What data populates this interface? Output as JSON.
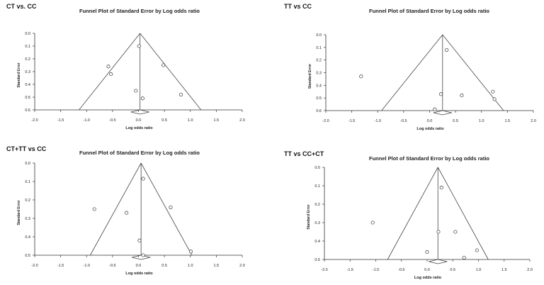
{
  "chart_data": [
    {
      "type": "scatter",
      "panel_label": "CT vs. CC",
      "title": "Funnel Plot of Standard Error by Log odds ratio",
      "xlabel": "Log odds ratio",
      "ylabel": "Standard Error",
      "xlim": [
        -2.0,
        2.0
      ],
      "ylim": [
        0.0,
        0.6
      ],
      "x_ticks": [
        "-2.0",
        "-1.5",
        "-1.0",
        "-0.5",
        "0.0",
        "0.5",
        "1.0",
        "1.5",
        "2.0"
      ],
      "y_ticks": [
        "0.0",
        "0.1",
        "0.2",
        "0.3",
        "0.4",
        "0.5",
        "0.6"
      ],
      "pooled_estimate": 0.03,
      "funnel_base_se": 0.6,
      "points": [
        {
          "x": 0.01,
          "y": 0.1
        },
        {
          "x": -0.58,
          "y": 0.26
        },
        {
          "x": -0.53,
          "y": 0.32
        },
        {
          "x": 0.48,
          "y": 0.25
        },
        {
          "x": -0.05,
          "y": 0.45
        },
        {
          "x": 0.08,
          "y": 0.51
        },
        {
          "x": 0.82,
          "y": 0.48
        }
      ]
    },
    {
      "type": "scatter",
      "panel_label": "TT vs CC",
      "title": "Funnel Plot of Standard Error by Log odds ratio",
      "xlabel": "Log odds ratio",
      "ylabel": "Standard Error",
      "xlim": [
        -2.0,
        2.0
      ],
      "ylim": [
        0.0,
        0.6
      ],
      "x_ticks": [
        "-2.0",
        "-1.5",
        "-1.0",
        "-0.5",
        "0.0",
        "0.5",
        "1.0",
        "1.5",
        "2.0"
      ],
      "y_ticks": [
        "0.0",
        "0.1",
        "0.2",
        "0.3",
        "0.4",
        "0.5",
        "0.6"
      ],
      "pooled_estimate": 0.25,
      "funnel_base_se": 0.6,
      "points": [
        {
          "x": 0.33,
          "y": 0.12
        },
        {
          "x": -1.32,
          "y": 0.33
        },
        {
          "x": 0.22,
          "y": 0.47
        },
        {
          "x": 0.62,
          "y": 0.48
        },
        {
          "x": 1.22,
          "y": 0.45
        },
        {
          "x": 1.25,
          "y": 0.51
        },
        {
          "x": 0.1,
          "y": 0.59
        }
      ]
    },
    {
      "type": "scatter",
      "panel_label": "CT+TT vs CC",
      "title": "Funnel Plot of Standard Error by Log odds ratio",
      "xlabel": "Log odds ratio",
      "ylabel": "Standard Error",
      "xlim": [
        -2.0,
        2.0
      ],
      "ylim": [
        0.0,
        0.5
      ],
      "x_ticks": [
        "-2.0",
        "-1.5",
        "-1.0",
        "-0.5",
        "0.0",
        "0.5",
        "1.0",
        "1.5",
        "2.0"
      ],
      "y_ticks": [
        "0.0",
        "0.1",
        "0.2",
        "0.3",
        "0.4",
        "0.5"
      ],
      "pooled_estimate": 0.05,
      "funnel_base_se": 0.5,
      "points": [
        {
          "x": 0.09,
          "y": 0.085
        },
        {
          "x": -0.85,
          "y": 0.25
        },
        {
          "x": -0.23,
          "y": 0.27
        },
        {
          "x": 0.62,
          "y": 0.24
        },
        {
          "x": 0.02,
          "y": 0.42
        },
        {
          "x": 1.01,
          "y": 0.48
        },
        {
          "x": 0.09,
          "y": 0.5
        }
      ]
    },
    {
      "type": "scatter",
      "panel_label": "TT vs CC+CT",
      "title": "Funnel Plot of Standard Error by Log odds ratio",
      "xlabel": "Log odds ratio",
      "ylabel": "Standard Error",
      "xlim": [
        -2.0,
        2.0
      ],
      "ylim": [
        0.0,
        0.5
      ],
      "x_ticks": [
        "-2.0",
        "-1.5",
        "-1.0",
        "-0.5",
        "0.0",
        "0.5",
        "1.0",
        "1.5",
        "2.0"
      ],
      "y_ticks": [
        "0.0",
        "0.1",
        "0.2",
        "0.3",
        "0.4",
        "0.5"
      ],
      "pooled_estimate": 0.21,
      "funnel_base_se": 0.5,
      "points": [
        {
          "x": 0.28,
          "y": 0.11
        },
        {
          "x": -1.06,
          "y": 0.3
        },
        {
          "x": 0.22,
          "y": 0.35
        },
        {
          "x": 0.55,
          "y": 0.35
        },
        {
          "x": 0.0,
          "y": 0.46
        },
        {
          "x": 0.97,
          "y": 0.45
        },
        {
          "x": 0.72,
          "y": 0.49
        }
      ]
    }
  ]
}
